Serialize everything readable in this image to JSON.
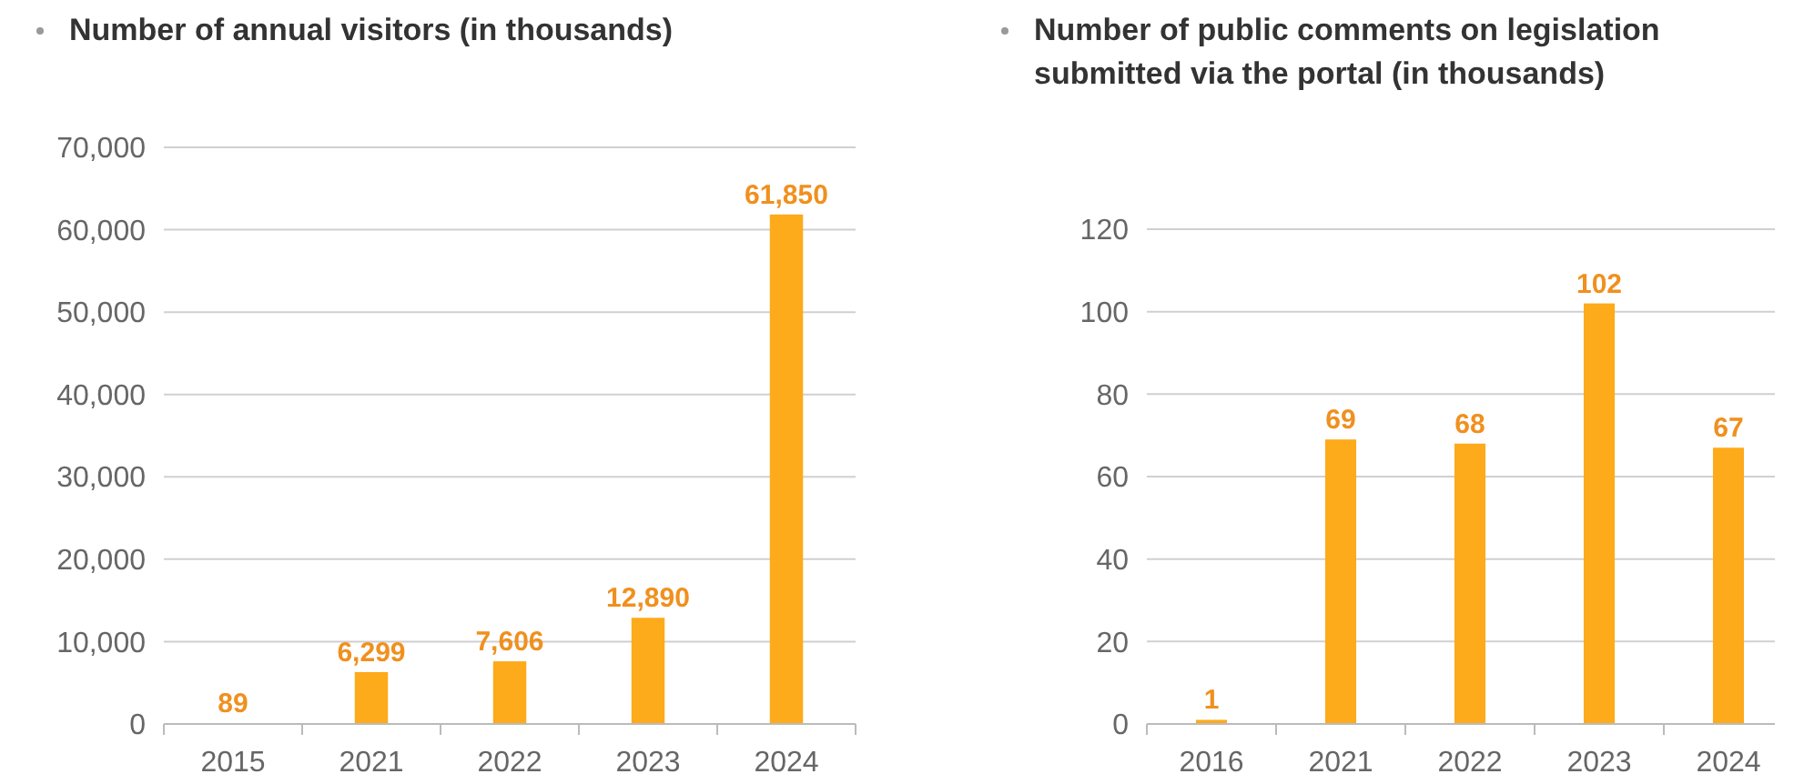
{
  "chart_data": [
    {
      "type": "bar",
      "title": "Number of annual visitors (in thousands)",
      "categories": [
        "2015",
        "2021",
        "2022",
        "2023",
        "2024"
      ],
      "values": [
        89,
        6299,
        7606,
        12890,
        61850
      ],
      "color": "#fdaa1b",
      "ylim": [
        0,
        70000
      ],
      "yticks": [
        {
          "value": 0,
          "label": "0"
        },
        {
          "value": 10000,
          "label": "10,000"
        },
        {
          "value": 20000,
          "label": "20,000"
        },
        {
          "value": 30000,
          "label": "30,000"
        },
        {
          "value": 40000,
          "label": "40,000"
        },
        {
          "value": 50000,
          "label": "50,000"
        },
        {
          "value": 60000,
          "label": "60,000"
        },
        {
          "value": 70000,
          "label": "70,000"
        }
      ],
      "grid": "y",
      "value_labels": [
        "89",
        "6,299",
        "7,606",
        "12,890",
        "61,850"
      ]
    },
    {
      "type": "bar",
      "title": "Number of public comments on legislation submitted via the portal (in thousands)",
      "categories": [
        "2016",
        "2021",
        "2022",
        "2023",
        "2024"
      ],
      "values": [
        1,
        69,
        68,
        102,
        67
      ],
      "color": "#fdaa1b",
      "ylim": [
        0,
        120
      ],
      "yticks": [
        0,
        20,
        40,
        60,
        80,
        100,
        120
      ],
      "grid": "y",
      "data_labels": true
    }
  ]
}
